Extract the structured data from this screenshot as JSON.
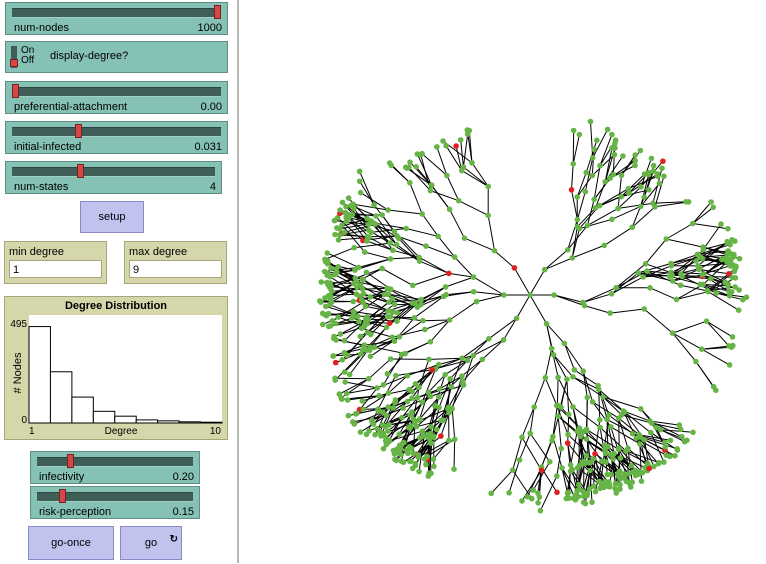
{
  "controls": {
    "num_nodes": {
      "label": "num-nodes",
      "value": "1000",
      "fraction": 1.0
    },
    "display_degree": {
      "label": "display-degree?",
      "on_label": "On",
      "off_label": "Off",
      "state": "off"
    },
    "preferential_attachment": {
      "label": "preferential-attachment",
      "value": "0.00",
      "fraction": 0.0
    },
    "initial_infected": {
      "label": "initial-infected",
      "value": "0.031",
      "fraction": 0.31
    },
    "num_states": {
      "label": "num-states",
      "value": "4",
      "fraction": 0.33
    },
    "setup": {
      "label": "setup"
    },
    "infectivity": {
      "label": "infectivity",
      "value": "0.20",
      "fraction": 0.2
    },
    "risk_perception": {
      "label": "risk-perception",
      "value": "0.15",
      "fraction": 0.15
    },
    "go_once": {
      "label": "go-once"
    },
    "go": {
      "label": "go",
      "icon": "forever-icon"
    }
  },
  "monitors": {
    "min_degree": {
      "label": "min degree",
      "value": "1"
    },
    "max_degree": {
      "label": "max degree",
      "value": "9"
    }
  },
  "chart_data": {
    "type": "bar",
    "title": "Degree Distribution",
    "xlabel": "Degree",
    "ylabel": "# Nodes",
    "x_ticks": [
      "1",
      "10"
    ],
    "y_ticks": [
      "495",
      "0"
    ],
    "xlim": [
      1,
      10
    ],
    "ylim": [
      0,
      495
    ],
    "categories": [
      "1",
      "2",
      "3",
      "4",
      "5",
      "6",
      "7",
      "8",
      "9"
    ],
    "values": [
      495,
      263,
      133,
      60,
      35,
      16,
      11,
      6,
      4
    ]
  },
  "network": {
    "node_color": "#66b446",
    "infected_color": "#e02020",
    "link_color": "#000000"
  }
}
